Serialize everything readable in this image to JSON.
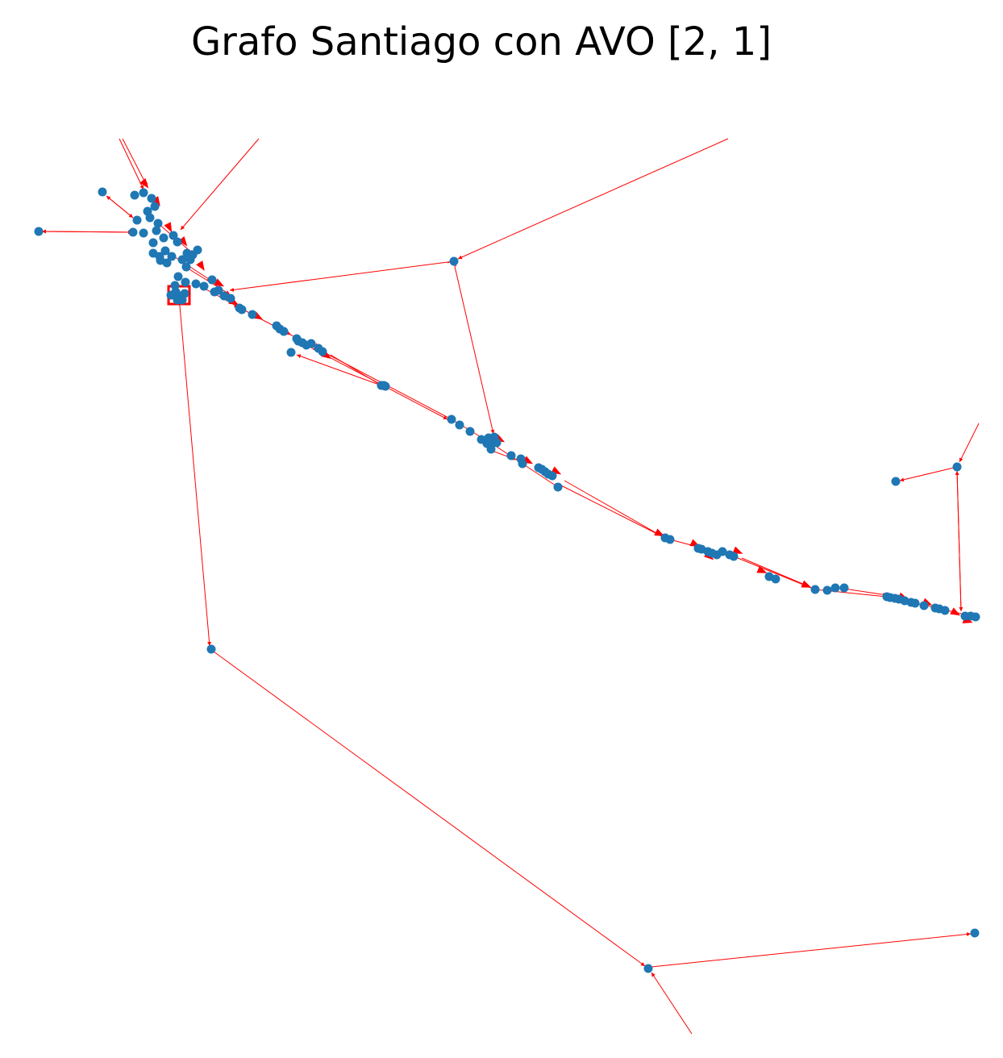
{
  "title": "Grafo Santiago con AVO [2, 1]",
  "colors": {
    "node": "#1f77b4",
    "edge": "#ff0000",
    "background": "#ffffff"
  }
}
